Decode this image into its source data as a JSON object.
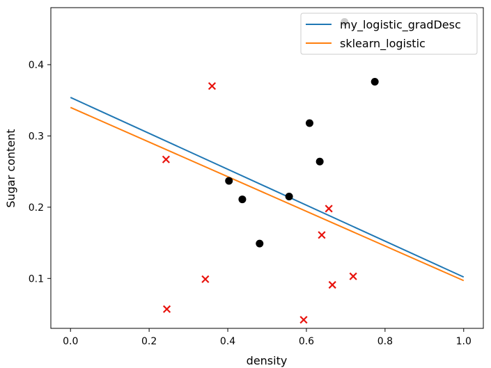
{
  "chart_data": {
    "type": "scatter",
    "title": "",
    "xlabel": "density",
    "ylabel": "Sugar content",
    "xlim": [
      -0.05,
      1.05
    ],
    "ylim": [
      0.03,
      0.48
    ],
    "x_ticks": [
      0.0,
      0.2,
      0.4,
      0.6,
      0.8,
      1.0
    ],
    "y_ticks": [
      0.1,
      0.2,
      0.3,
      0.4
    ],
    "x_tick_labels": [
      "0.0",
      "0.2",
      "0.4",
      "0.6",
      "0.8",
      "1.0"
    ],
    "y_tick_labels": [
      "0.1",
      "0.2",
      "0.3",
      "0.4"
    ],
    "grid": false,
    "legend_position": "top-right",
    "scatter_series": [
      {
        "marker": "circle",
        "color": "#000000",
        "points": [
          [
            0.697,
            0.46
          ],
          [
            0.774,
            0.376
          ],
          [
            0.634,
            0.264
          ],
          [
            0.608,
            0.318
          ],
          [
            0.556,
            0.215
          ],
          [
            0.403,
            0.237
          ],
          [
            0.481,
            0.149
          ],
          [
            0.437,
            0.211
          ]
        ]
      },
      {
        "marker": "x",
        "color": "#e8120c",
        "points": [
          [
            0.36,
            0.37
          ],
          [
            0.243,
            0.267
          ],
          [
            0.657,
            0.198
          ],
          [
            0.639,
            0.161
          ],
          [
            0.719,
            0.103
          ],
          [
            0.666,
            0.091
          ],
          [
            0.343,
            0.099
          ],
          [
            0.245,
            0.057
          ],
          [
            0.593,
            0.042
          ]
        ]
      }
    ],
    "line_series": [
      {
        "name": "my_logistic_gradDesc",
        "color": "#1f77b4",
        "x": [
          0.0,
          1.0
        ],
        "y": [
          0.354,
          0.102
        ]
      },
      {
        "name": "sklearn_logistic",
        "color": "#ff7f0e",
        "x": [
          0.0,
          1.0
        ],
        "y": [
          0.34,
          0.097
        ]
      }
    ]
  }
}
